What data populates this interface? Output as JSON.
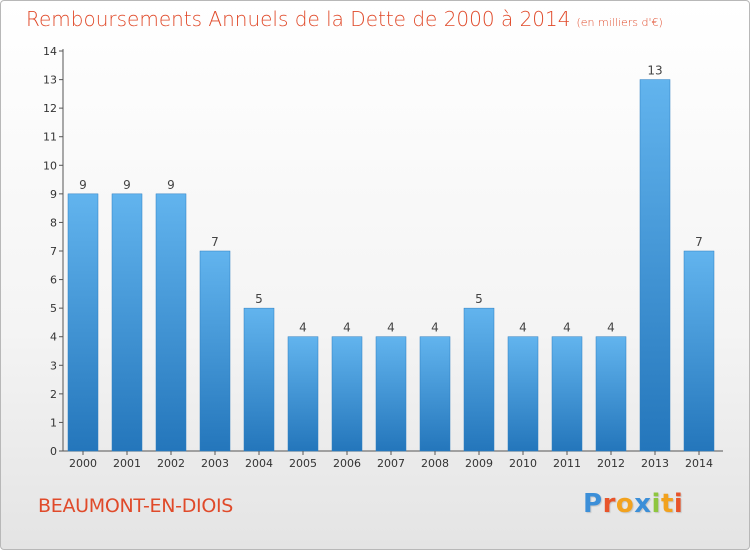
{
  "chart_data": {
    "type": "bar",
    "title": "Remboursements Annuels de la Dette de 2000 à 2014",
    "unit_note": "(en milliers d'€)",
    "categories": [
      "2000",
      "2001",
      "2002",
      "2003",
      "2004",
      "2005",
      "2006",
      "2007",
      "2008",
      "2009",
      "2010",
      "2011",
      "2012",
      "2013",
      "2014"
    ],
    "values": [
      9,
      9,
      9,
      7,
      5,
      4,
      4,
      4,
      4,
      5,
      4,
      4,
      4,
      13,
      7
    ],
    "ylim": [
      0,
      14
    ],
    "yticks": [
      "0",
      "1",
      "2",
      "3",
      "4",
      "5",
      "6",
      "7",
      "8",
      "9",
      "10",
      "11",
      "12",
      "13",
      "14"
    ],
    "xlabel": "",
    "ylabel": "",
    "bar_color": "#3e92d6",
    "bar_color_light": "#62b4ee",
    "bar_color_dark": "#2476bb"
  },
  "footer": {
    "commune": "BEAUMONT-EN-DIOIS",
    "logo_letters": [
      "P",
      "r",
      "o",
      "x",
      "i",
      "t",
      "i"
    ],
    "logo_colors": [
      "#3c8fd8",
      "#e8542a",
      "#f2a21e",
      "#3c8fd8",
      "#8ec63f",
      "#f2a21e",
      "#e8542a"
    ]
  }
}
